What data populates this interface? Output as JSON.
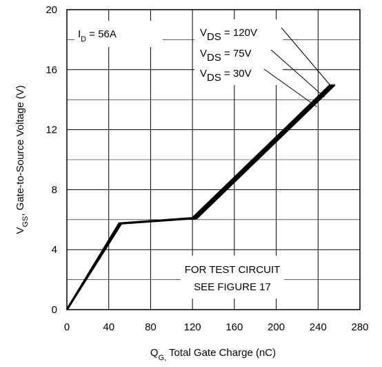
{
  "chart_data": {
    "type": "line",
    "title": "",
    "xlabel": "Q",
    "xlabel_sub": "G,",
    "xlabel_rest": " Total Gate Charge (nC)",
    "ylabel": "V",
    "ylabel_sub": "GS",
    "ylabel_rest": ", Gate-to-Source Voltage (V)",
    "xlim": [
      0,
      280
    ],
    "ylim": [
      0,
      20
    ],
    "xticks": [
      0,
      40,
      80,
      120,
      160,
      200,
      240,
      280
    ],
    "yticks": [
      0,
      4,
      8,
      12,
      16,
      20
    ],
    "xtick_labels": [
      "0",
      "40",
      "80",
      "120",
      "160",
      "200",
      "240",
      "280"
    ],
    "ytick_labels": [
      "0",
      "4",
      "8",
      "12",
      "16",
      "20"
    ],
    "grid": true,
    "series": [
      {
        "name": "VDS = 120V",
        "x": [
          0,
          52,
          124,
          256
        ],
        "y": [
          0,
          5.75,
          6.1,
          15.0
        ]
      },
      {
        "name": "VDS = 75V",
        "x": [
          0,
          51,
          122,
          254
        ],
        "y": [
          0,
          5.75,
          6.1,
          15.0
        ]
      },
      {
        "name": "VDS = 30V",
        "x": [
          0,
          50,
          120,
          252
        ],
        "y": [
          0,
          5.75,
          6.1,
          15.0
        ]
      }
    ],
    "annotations": {
      "id_prefix": "I",
      "id_sub": "D",
      "id_rest": " = 56A",
      "vds_prefix": "V",
      "vds_sub": "DS",
      "vds_labels": [
        " = 120V",
        " = 75V",
        " = 30V"
      ],
      "test_line1": "FOR TEST CIRCUIT",
      "test_line2": "SEE FIGURE 17"
    }
  }
}
